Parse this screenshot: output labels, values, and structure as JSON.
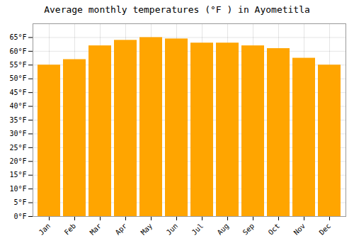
{
  "chart_data": {
    "type": "bar",
    "title": "Average monthly temperatures (°F ) in Ayometitla",
    "categories": [
      "Jan",
      "Feb",
      "Mar",
      "Apr",
      "May",
      "Jun",
      "Jul",
      "Aug",
      "Sep",
      "Oct",
      "Nov",
      "Dec"
    ],
    "values": [
      55.0,
      57.0,
      62.0,
      64.0,
      65.0,
      64.5,
      63.0,
      63.0,
      62.0,
      61.0,
      57.5,
      55.0
    ],
    "color": "#FFA500",
    "ylim": [
      0,
      70
    ],
    "yticks": [
      {
        "value": 0,
        "label": "0°F"
      },
      {
        "value": 5,
        "label": "5°F"
      },
      {
        "value": 10,
        "label": "10°F"
      },
      {
        "value": 15,
        "label": "15°F"
      },
      {
        "value": 20,
        "label": "20°F"
      },
      {
        "value": 25,
        "label": "25°F"
      },
      {
        "value": 30,
        "label": "30°F"
      },
      {
        "value": 35,
        "label": "35°F"
      },
      {
        "value": 40,
        "label": "40°F"
      },
      {
        "value": 45,
        "label": "45°F"
      },
      {
        "value": 50,
        "label": "50°F"
      },
      {
        "value": 55,
        "label": "55°F"
      },
      {
        "value": 60,
        "label": "60°F"
      },
      {
        "value": 65,
        "label": "65°F"
      }
    ],
    "grid": true
  }
}
